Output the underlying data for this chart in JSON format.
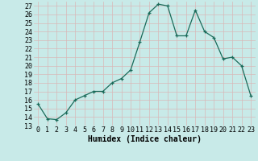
{
  "x": [
    0,
    1,
    2,
    3,
    4,
    5,
    6,
    7,
    8,
    9,
    10,
    11,
    12,
    13,
    14,
    15,
    16,
    17,
    18,
    19,
    20,
    21,
    22,
    23
  ],
  "y": [
    15.5,
    13.8,
    13.7,
    14.5,
    16.0,
    16.5,
    17.0,
    17.0,
    18.0,
    18.5,
    19.5,
    22.8,
    26.2,
    27.2,
    27.0,
    23.5,
    23.5,
    26.5,
    24.0,
    23.3,
    20.8,
    21.0,
    20.0,
    16.5
  ],
  "xlabel": "Humidex (Indice chaleur)",
  "ylim": [
    13,
    27.5
  ],
  "xlim": [
    -0.5,
    23.5
  ],
  "yticks": [
    13,
    14,
    15,
    16,
    17,
    18,
    19,
    20,
    21,
    22,
    23,
    24,
    25,
    26,
    27
  ],
  "xticks": [
    0,
    1,
    2,
    3,
    4,
    5,
    6,
    7,
    8,
    9,
    10,
    11,
    12,
    13,
    14,
    15,
    16,
    17,
    18,
    19,
    20,
    21,
    22,
    23
  ],
  "xtick_labels": [
    "0",
    "1",
    "2",
    "3",
    "4",
    "5",
    "6",
    "7",
    "8",
    "9",
    "10",
    "11",
    "12",
    "13",
    "14",
    "15",
    "16",
    "17",
    "18",
    "19",
    "20",
    "21",
    "22",
    "23"
  ],
  "line_color": "#1a6b5a",
  "marker": "+",
  "bg_color": "#c8eae8",
  "grid_color": "#d8b8b8",
  "label_fontsize": 7,
  "tick_fontsize": 6
}
